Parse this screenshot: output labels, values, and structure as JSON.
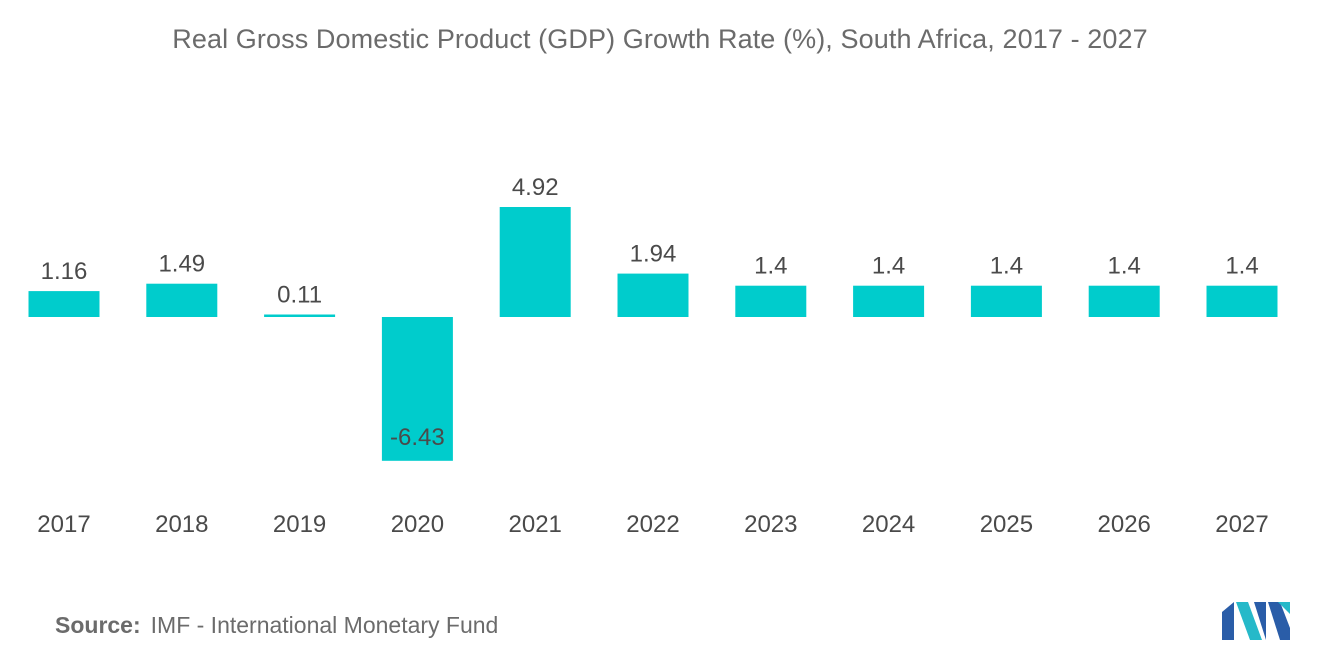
{
  "colors": {
    "bar": "#00cccc",
    "text": "#4a4a4a",
    "muted": "#6b6b6b",
    "logo_dark": "#2a5da8",
    "logo_light": "#26b9c9"
  },
  "chart_data": {
    "type": "bar",
    "title": "Real Gross Domestic Product (GDP) Growth Rate (%),  South Africa, 2017 - 2027",
    "xlabel": "",
    "ylabel": "",
    "categories": [
      "2017",
      "2018",
      "2019",
      "2020",
      "2021",
      "2022",
      "2023",
      "2024",
      "2025",
      "2026",
      "2027"
    ],
    "series": [
      {
        "values": [
          1.16,
          1.49,
          0.11,
          -6.43,
          4.92,
          1.94,
          1.4,
          1.4,
          1.4,
          1.4,
          1.4
        ]
      }
    ],
    "value_labels": [
      "1.16",
      "1.49",
      "0.11",
      "-6.43",
      "4.92",
      "1.94",
      "1.4",
      "1.4",
      "1.4",
      "1.4",
      "1.4"
    ],
    "ylim": [
      -6.43,
      4.92
    ],
    "grid": false,
    "legend": "none",
    "y_axis_visible": false
  },
  "source": {
    "label": "Source:",
    "text": "IMF - International Monetary Fund"
  },
  "logo": {
    "icon": "mordor-intelligence-logo"
  }
}
